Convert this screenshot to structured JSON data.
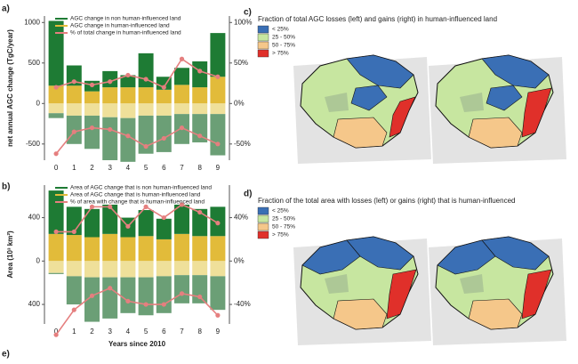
{
  "chart_data": [
    {
      "type": "bar",
      "label": "a)",
      "ylabel": "net annual AGC change (TgC/year)",
      "categories": [
        "0",
        "1",
        "2",
        "3",
        "4",
        "5",
        "6",
        "7",
        "8",
        "9"
      ],
      "ylim": [
        -700,
        1080
      ],
      "yticks": [
        1000,
        500,
        0,
        -500
      ],
      "y2lim": [
        -70,
        108
      ],
      "y2ticks": [
        {
          "value": 100,
          "label": "100%"
        },
        {
          "value": 50,
          "label": "50%"
        },
        {
          "value": 0,
          "label": "0%"
        },
        {
          "value": -50,
          "label": "-50%"
        }
      ],
      "series": [
        {
          "name": "AGC change in non human-influenced land",
          "color": "#1e7b34",
          "negative_color": "#6b9f76",
          "values": [
            800,
            250,
            130,
            200,
            150,
            420,
            160,
            210,
            320,
            540
          ],
          "negative_values": [
            -60,
            -350,
            -410,
            -530,
            -540,
            -470,
            -450,
            -370,
            -350,
            -510
          ]
        },
        {
          "name": "AGC change in human-influenced land",
          "color": "#e2bb3a",
          "negative_color": "#efe09a",
          "values": [
            220,
            220,
            150,
            200,
            200,
            200,
            170,
            230,
            200,
            330
          ],
          "negative_values": [
            -120,
            -150,
            -150,
            -170,
            -180,
            -150,
            -150,
            -130,
            -130,
            -130
          ]
        },
        {
          "name": "% of total change in human-influenced land",
          "type": "line",
          "axis": "y2",
          "color": "#e57f7f",
          "values": [
            20,
            27,
            23,
            27,
            35,
            30,
            20,
            55,
            40,
            33
          ],
          "negative_values": [
            -62,
            -35,
            -30,
            -32,
            -40,
            -53,
            -43,
            -30,
            -40,
            -50
          ]
        }
      ]
    },
    {
      "type": "bar",
      "label": "b)",
      "ylabel": "Area (10³ km²)",
      "xlabel": "Years since 2010",
      "categories": [
        "0",
        "1",
        "2",
        "3",
        "4",
        "5",
        "6",
        "7",
        "8",
        "9"
      ],
      "ylim": [
        -580,
        700
      ],
      "yticks": [
        400,
        0,
        {
          "value": -400,
          "label": "400"
        }
      ],
      "y2lim": [
        -58,
        70
      ],
      "y2ticks": [
        {
          "value": 40,
          "label": "40%"
        },
        {
          "value": 0,
          "label": "0%"
        },
        {
          "value": -40,
          "label": "-40%"
        }
      ],
      "series": [
        {
          "name": "Area of AGC change that is non human-influenced land",
          "color": "#1e7b34",
          "negative_color": "#6b9f76",
          "values": [
            400,
            260,
            260,
            270,
            180,
            240,
            190,
            270,
            250,
            270
          ],
          "negative_values": [
            -10,
            -260,
            -410,
            -380,
            -330,
            -350,
            -340,
            -260,
            -260,
            -310
          ]
        },
        {
          "name": "Area of AGC change that is human-influenced land",
          "color": "#e2bb3a",
          "negative_color": "#efe09a",
          "values": [
            250,
            240,
            220,
            250,
            220,
            230,
            200,
            250,
            230,
            230
          ],
          "negative_values": [
            -110,
            -140,
            -150,
            -150,
            -150,
            -150,
            -140,
            -130,
            -130,
            -140
          ]
        },
        {
          "name": "% of area with change that is human-influenced land",
          "type": "line",
          "axis": "y2",
          "color": "#e57f7f",
          "values": [
            27,
            27,
            50,
            50,
            32,
            50,
            40,
            52,
            45,
            35
          ],
          "negative_values": [
            -68,
            -45,
            -32,
            -25,
            -37,
            -40,
            -40,
            -30,
            -33,
            -50
          ]
        }
      ]
    }
  ],
  "maps": [
    {
      "label": "c)",
      "title": "Fraction of total AGC losses (left) and gains (right) in human-influenced land",
      "legend": [
        {
          "label": "< 25%",
          "color": "#3a6fb5"
        },
        {
          "label": "25 - 50%",
          "color": "#c7e6a0"
        },
        {
          "label": "50 - 75%",
          "color": "#f5c78a"
        },
        {
          "label": "> 75%",
          "color": "#e0302a"
        }
      ]
    },
    {
      "label": "d)",
      "title": "Fraction of the total area with losses (left) or gains (right) that is human-influenced",
      "legend": [
        {
          "label": "< 25%",
          "color": "#3a6fb5"
        },
        {
          "label": "25 - 50%",
          "color": "#c7e6a0"
        },
        {
          "label": "50 - 75%",
          "color": "#f5c78a"
        },
        {
          "label": "> 75%",
          "color": "#e0302a"
        }
      ]
    }
  ],
  "panel_e": "e)"
}
